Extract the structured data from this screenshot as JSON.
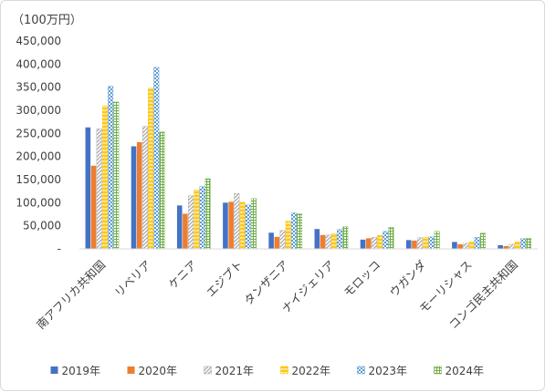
{
  "chart_data": {
    "type": "bar",
    "unit_label": "（100万円）",
    "ylim": [
      0,
      450000
    ],
    "yticks": [
      0,
      50000,
      100000,
      150000,
      200000,
      250000,
      300000,
      350000,
      400000,
      450000
    ],
    "ytick_labels": [
      "-",
      "50,000",
      "100,000",
      "150,000",
      "200,000",
      "250,000",
      "300,000",
      "350,000",
      "400,000",
      "450,000"
    ],
    "grid": false,
    "legend_position": "bottom",
    "categories": [
      "南アフリカ共和国",
      "リベリア",
      "ケニア",
      "エジプト",
      "タンザニア",
      "ナイジェリア",
      "モロッコ",
      "ウガンダ",
      "モーリシャス",
      "コンゴ民主共和国"
    ],
    "series": [
      {
        "name": "2019年",
        "color": "#4472c4",
        "pattern": "solid",
        "values": [
          263000,
          222000,
          94000,
          100000,
          35000,
          43000,
          20000,
          19000,
          15000,
          8000
        ]
      },
      {
        "name": "2020年",
        "color": "#ed7d31",
        "pattern": "solid",
        "values": [
          180000,
          231000,
          76000,
          102000,
          26000,
          30000,
          23000,
          18000,
          10000,
          6000
        ]
      },
      {
        "name": "2021年",
        "color": "#a5a5a5",
        "pattern": "diagonal",
        "values": [
          260000,
          265000,
          115000,
          120000,
          40000,
          30000,
          25000,
          24000,
          12000,
          10000
        ]
      },
      {
        "name": "2022年",
        "color": "#ffc000",
        "pattern": "zigzag",
        "values": [
          310000,
          348000,
          128000,
          101000,
          60000,
          33000,
          29000,
          25000,
          15000,
          15000
        ]
      },
      {
        "name": "2023年",
        "color": "#5b9bd5",
        "pattern": "checker",
        "values": [
          352000,
          393000,
          135000,
          95000,
          78000,
          42000,
          38000,
          26000,
          25000,
          22000
        ]
      },
      {
        "name": "2024年",
        "color": "#70ad47",
        "pattern": "grid",
        "values": [
          318000,
          253000,
          152000,
          109000,
          76000,
          48000,
          47000,
          38000,
          34000,
          23000
        ]
      }
    ]
  }
}
